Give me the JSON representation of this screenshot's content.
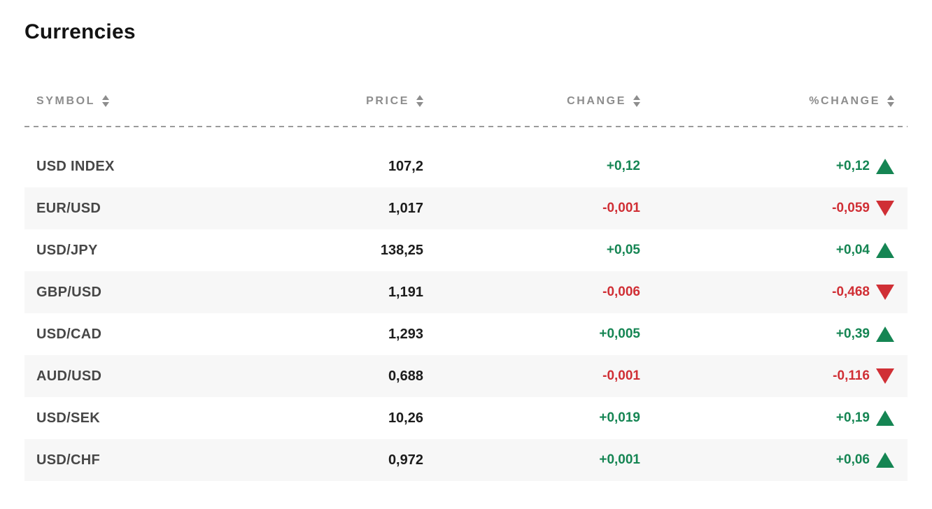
{
  "title": "Currencies",
  "colors": {
    "positive": "#158553",
    "negative": "#D02F35",
    "header-text": "#8D8D8D",
    "symbol-text": "#474747",
    "value-text": "#1C1C1C",
    "stripe": "#F7F7F7",
    "dash": "#9B9B9B"
  },
  "table": {
    "columns": [
      {
        "key": "symbol",
        "label": "SYMBOL"
      },
      {
        "key": "price",
        "label": "PRICE"
      },
      {
        "key": "change",
        "label": "CHANGE"
      },
      {
        "key": "pct_change",
        "label": "%CHANGE"
      }
    ],
    "rows": [
      {
        "symbol": "USD INDEX",
        "price": "107,2",
        "change": "+0,12",
        "pct_change": "+0,12",
        "direction": "up"
      },
      {
        "symbol": "EUR/USD",
        "price": "1,017",
        "change": "-0,001",
        "pct_change": "-0,059",
        "direction": "down"
      },
      {
        "symbol": "USD/JPY",
        "price": "138,25",
        "change": "+0,05",
        "pct_change": "+0,04",
        "direction": "up"
      },
      {
        "symbol": "GBP/USD",
        "price": "1,191",
        "change": "-0,006",
        "pct_change": "-0,468",
        "direction": "down"
      },
      {
        "symbol": "USD/CAD",
        "price": "1,293",
        "change": "+0,005",
        "pct_change": "+0,39",
        "direction": "up"
      },
      {
        "symbol": "AUD/USD",
        "price": "0,688",
        "change": "-0,001",
        "pct_change": "-0,116",
        "direction": "down"
      },
      {
        "symbol": "USD/SEK",
        "price": "10,26",
        "change": "+0,019",
        "pct_change": "+0,19",
        "direction": "up"
      },
      {
        "symbol": "USD/CHF",
        "price": "0,972",
        "change": "+0,001",
        "pct_change": "+0,06",
        "direction": "up"
      }
    ]
  }
}
